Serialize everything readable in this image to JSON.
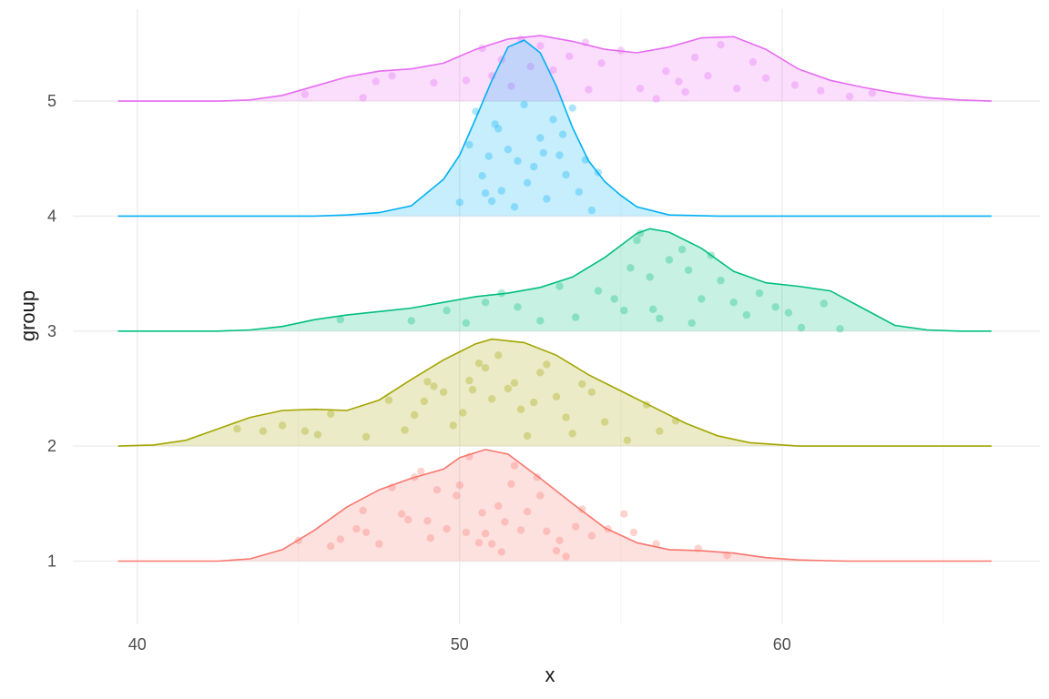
{
  "chart_data": {
    "type": "ridgeline",
    "xlabel": "x",
    "ylabel": "group",
    "xlim": [
      38,
      68
    ],
    "ylim": [
      0.45,
      5.8
    ],
    "x_ticks": [
      40,
      50,
      60
    ],
    "y_ticks": [
      1,
      2,
      3,
      4,
      5
    ],
    "grid": true,
    "legend": "none",
    "density_scale_groups": 1.0,
    "series": [
      {
        "group": 1,
        "color": "#F8766D",
        "density_profile": [
          [
            39.4,
            0
          ],
          [
            42.5,
            0
          ],
          [
            43.5,
            0.02
          ],
          [
            44.5,
            0.1
          ],
          [
            45.5,
            0.27
          ],
          [
            46.5,
            0.47
          ],
          [
            47.5,
            0.62
          ],
          [
            48.5,
            0.72
          ],
          [
            49.5,
            0.8
          ],
          [
            50.0,
            0.9
          ],
          [
            50.8,
            0.97
          ],
          [
            51.5,
            0.93
          ],
          [
            52.5,
            0.72
          ],
          [
            53.5,
            0.5
          ],
          [
            54.5,
            0.29
          ],
          [
            55.5,
            0.16
          ],
          [
            56.5,
            0.1
          ],
          [
            57.5,
            0.09
          ],
          [
            58.5,
            0.07
          ],
          [
            59.5,
            0.03
          ],
          [
            60.5,
            0.01
          ],
          [
            62,
            0
          ],
          [
            66.5,
            0
          ]
        ],
        "points": [
          [
            45.0,
            1.18
          ],
          [
            46.0,
            1.13
          ],
          [
            46.3,
            1.19
          ],
          [
            46.8,
            1.28
          ],
          [
            47.1,
            1.25
          ],
          [
            47.5,
            1.15
          ],
          [
            47.9,
            1.64
          ],
          [
            48.4,
            1.36
          ],
          [
            48.6,
            1.73
          ],
          [
            48.8,
            1.78
          ],
          [
            49.0,
            1.35
          ],
          [
            49.1,
            1.2
          ],
          [
            49.6,
            1.28
          ],
          [
            49.9,
            1.57
          ],
          [
            50.2,
            1.25
          ],
          [
            50.3,
            1.91
          ],
          [
            50.6,
            1.16
          ],
          [
            50.7,
            1.42
          ],
          [
            50.8,
            1.24
          ],
          [
            51.0,
            1.15
          ],
          [
            51.2,
            1.48
          ],
          [
            51.3,
            1.08
          ],
          [
            51.4,
            1.34
          ],
          [
            51.6,
            1.67
          ],
          [
            51.9,
            1.27
          ],
          [
            52.1,
            1.43
          ],
          [
            52.4,
            1.73
          ],
          [
            52.5,
            1.57
          ],
          [
            52.7,
            1.26
          ],
          [
            53.0,
            1.09
          ],
          [
            53.1,
            1.18
          ],
          [
            53.3,
            1.04
          ],
          [
            53.6,
            1.3
          ],
          [
            54.1,
            1.22
          ],
          [
            54.6,
            1.28
          ],
          [
            55.1,
            1.41
          ],
          [
            55.4,
            1.25
          ],
          [
            56.1,
            1.15
          ],
          [
            57.4,
            1.11
          ],
          [
            58.3,
            1.05
          ],
          [
            48.2,
            1.41
          ],
          [
            47.0,
            1.44
          ],
          [
            49.3,
            1.62
          ],
          [
            51.7,
            1.83
          ],
          [
            53.8,
            1.45
          ],
          [
            50.0,
            1.66
          ]
        ]
      },
      {
        "group": 2,
        "color": "#A3A500",
        "density_profile": [
          [
            39.4,
            0
          ],
          [
            40.5,
            0.01
          ],
          [
            41.5,
            0.05
          ],
          [
            42.5,
            0.15
          ],
          [
            43.5,
            0.25
          ],
          [
            44.5,
            0.31
          ],
          [
            45.5,
            0.32
          ],
          [
            46.5,
            0.31
          ],
          [
            47.5,
            0.4
          ],
          [
            48.5,
            0.58
          ],
          [
            49.5,
            0.75
          ],
          [
            50.5,
            0.89
          ],
          [
            51.0,
            0.93
          ],
          [
            52.0,
            0.9
          ],
          [
            53.0,
            0.79
          ],
          [
            54.0,
            0.62
          ],
          [
            55.0,
            0.48
          ],
          [
            56.0,
            0.34
          ],
          [
            57.0,
            0.2
          ],
          [
            58.0,
            0.09
          ],
          [
            59.0,
            0.03
          ],
          [
            60.5,
            0
          ],
          [
            66.5,
            0
          ]
        ],
        "points": [
          [
            43.1,
            2.15
          ],
          [
            43.9,
            2.13
          ],
          [
            44.5,
            2.18
          ],
          [
            45.2,
            2.13
          ],
          [
            45.6,
            2.1
          ],
          [
            46.0,
            2.28
          ],
          [
            47.1,
            2.08
          ],
          [
            47.8,
            2.4
          ],
          [
            48.3,
            2.14
          ],
          [
            48.6,
            2.27
          ],
          [
            48.9,
            2.39
          ],
          [
            49.2,
            2.52
          ],
          [
            49.5,
            2.47
          ],
          [
            49.8,
            2.18
          ],
          [
            50.1,
            2.29
          ],
          [
            50.3,
            2.57
          ],
          [
            50.6,
            2.72
          ],
          [
            50.8,
            2.68
          ],
          [
            51.0,
            2.41
          ],
          [
            51.2,
            2.79
          ],
          [
            51.5,
            2.5
          ],
          [
            51.9,
            2.32
          ],
          [
            52.1,
            2.09
          ],
          [
            52.5,
            2.64
          ],
          [
            52.7,
            2.71
          ],
          [
            53.0,
            2.43
          ],
          [
            53.3,
            2.25
          ],
          [
            53.5,
            2.11
          ],
          [
            53.8,
            2.54
          ],
          [
            54.1,
            2.47
          ],
          [
            54.5,
            2.21
          ],
          [
            55.2,
            2.05
          ],
          [
            55.8,
            2.36
          ],
          [
            56.2,
            2.13
          ],
          [
            56.7,
            2.22
          ],
          [
            49.0,
            2.56
          ],
          [
            51.7,
            2.55
          ],
          [
            52.3,
            2.38
          ],
          [
            50.4,
            2.49
          ]
        ]
      },
      {
        "group": 3,
        "color": "#00BF7D",
        "density_profile": [
          [
            39.4,
            0
          ],
          [
            42.5,
            0
          ],
          [
            43.5,
            0.01
          ],
          [
            44.5,
            0.04
          ],
          [
            45.5,
            0.1
          ],
          [
            46.5,
            0.14
          ],
          [
            47.5,
            0.17
          ],
          [
            48.5,
            0.2
          ],
          [
            49.5,
            0.25
          ],
          [
            50.5,
            0.3
          ],
          [
            51.5,
            0.33
          ],
          [
            52.5,
            0.38
          ],
          [
            53.5,
            0.47
          ],
          [
            54.5,
            0.64
          ],
          [
            55.5,
            0.85
          ],
          [
            55.9,
            0.89
          ],
          [
            56.5,
            0.86
          ],
          [
            57.5,
            0.72
          ],
          [
            58.5,
            0.52
          ],
          [
            59.5,
            0.42
          ],
          [
            60.5,
            0.39
          ],
          [
            61.5,
            0.35
          ],
          [
            62.5,
            0.2
          ],
          [
            63.5,
            0.05
          ],
          [
            64.5,
            0.01
          ],
          [
            65.5,
            0
          ],
          [
            66.5,
            0
          ]
        ],
        "points": [
          [
            46.3,
            3.1
          ],
          [
            48.5,
            3.09
          ],
          [
            49.6,
            3.18
          ],
          [
            50.2,
            3.07
          ],
          [
            50.8,
            3.25
          ],
          [
            51.3,
            3.33
          ],
          [
            51.8,
            3.21
          ],
          [
            52.5,
            3.09
          ],
          [
            53.1,
            3.39
          ],
          [
            53.6,
            3.12
          ],
          [
            54.3,
            3.35
          ],
          [
            54.8,
            3.28
          ],
          [
            55.1,
            3.18
          ],
          [
            55.3,
            3.55
          ],
          [
            55.5,
            3.79
          ],
          [
            55.6,
            3.85
          ],
          [
            55.9,
            3.47
          ],
          [
            56.2,
            3.11
          ],
          [
            56.5,
            3.62
          ],
          [
            56.9,
            3.71
          ],
          [
            57.1,
            3.53
          ],
          [
            57.5,
            3.28
          ],
          [
            57.8,
            3.66
          ],
          [
            58.1,
            3.44
          ],
          [
            58.5,
            3.25
          ],
          [
            58.9,
            3.14
          ],
          [
            59.3,
            3.33
          ],
          [
            59.8,
            3.21
          ],
          [
            60.2,
            3.16
          ],
          [
            60.6,
            3.03
          ],
          [
            61.3,
            3.24
          ],
          [
            61.8,
            3.02
          ],
          [
            56.0,
            3.19
          ],
          [
            57.2,
            3.07
          ]
        ]
      },
      {
        "group": 4,
        "color": "#00B0F6",
        "density_profile": [
          [
            39.4,
            0
          ],
          [
            45.5,
            0
          ],
          [
            46.5,
            0.01
          ],
          [
            47.5,
            0.03
          ],
          [
            48.5,
            0.09
          ],
          [
            49.5,
            0.32
          ],
          [
            50.0,
            0.53
          ],
          [
            50.5,
            0.85
          ],
          [
            51.0,
            1.18
          ],
          [
            51.5,
            1.47
          ],
          [
            52.0,
            1.53
          ],
          [
            52.5,
            1.42
          ],
          [
            53.0,
            1.13
          ],
          [
            53.5,
            0.77
          ],
          [
            54.0,
            0.48
          ],
          [
            54.5,
            0.3
          ],
          [
            55.0,
            0.18
          ],
          [
            55.5,
            0.08
          ],
          [
            56.5,
            0.01
          ],
          [
            58,
            0
          ],
          [
            66.5,
            0
          ]
        ],
        "points": [
          [
            50.0,
            4.12
          ],
          [
            50.3,
            4.62
          ],
          [
            50.5,
            4.91
          ],
          [
            50.7,
            4.35
          ],
          [
            50.9,
            4.52
          ],
          [
            51.0,
            4.13
          ],
          [
            51.2,
            4.76
          ],
          [
            51.3,
            4.22
          ],
          [
            51.5,
            4.58
          ],
          [
            51.7,
            4.08
          ],
          [
            51.8,
            4.48
          ],
          [
            52.0,
            4.97
          ],
          [
            52.1,
            4.29
          ],
          [
            52.3,
            4.43
          ],
          [
            52.5,
            4.68
          ],
          [
            52.7,
            4.15
          ],
          [
            52.9,
            4.84
          ],
          [
            53.1,
            4.53
          ],
          [
            53.3,
            4.36
          ],
          [
            53.5,
            4.94
          ],
          [
            53.7,
            4.21
          ],
          [
            53.9,
            4.49
          ],
          [
            54.1,
            4.05
          ],
          [
            54.3,
            4.38
          ],
          [
            51.1,
            4.8
          ],
          [
            52.6,
            4.55
          ],
          [
            53.2,
            4.71
          ],
          [
            50.8,
            4.2
          ]
        ]
      },
      {
        "group": 5,
        "color": "#E76BF3",
        "density_profile": [
          [
            39.4,
            0
          ],
          [
            42.5,
            0
          ],
          [
            43.5,
            0.01
          ],
          [
            44.5,
            0.05
          ],
          [
            45.5,
            0.13
          ],
          [
            46.5,
            0.21
          ],
          [
            47.5,
            0.26
          ],
          [
            48.5,
            0.28
          ],
          [
            49.5,
            0.33
          ],
          [
            50.5,
            0.45
          ],
          [
            51.5,
            0.54
          ],
          [
            52.5,
            0.57
          ],
          [
            53.5,
            0.52
          ],
          [
            54.5,
            0.45
          ],
          [
            55.5,
            0.42
          ],
          [
            56.5,
            0.47
          ],
          [
            57.5,
            0.55
          ],
          [
            58.5,
            0.56
          ],
          [
            59.5,
            0.45
          ],
          [
            60.5,
            0.28
          ],
          [
            61.5,
            0.18
          ],
          [
            62.5,
            0.12
          ],
          [
            63.5,
            0.07
          ],
          [
            64.5,
            0.03
          ],
          [
            65.5,
            0.01
          ],
          [
            66.5,
            0
          ]
        ],
        "points": [
          [
            45.2,
            5.06
          ],
          [
            47.0,
            5.03
          ],
          [
            47.4,
            5.17
          ],
          [
            47.9,
            5.22
          ],
          [
            49.2,
            5.16
          ],
          [
            50.2,
            5.18
          ],
          [
            50.7,
            5.46
          ],
          [
            51.0,
            5.22
          ],
          [
            51.3,
            5.36
          ],
          [
            51.6,
            5.13
          ],
          [
            51.9,
            5.54
          ],
          [
            52.2,
            5.3
          ],
          [
            52.5,
            5.48
          ],
          [
            52.9,
            5.27
          ],
          [
            53.4,
            5.39
          ],
          [
            53.9,
            5.51
          ],
          [
            54.4,
            5.33
          ],
          [
            55.0,
            5.44
          ],
          [
            55.6,
            5.11
          ],
          [
            56.1,
            5.02
          ],
          [
            56.4,
            5.26
          ],
          [
            56.8,
            5.17
          ],
          [
            57.3,
            5.38
          ],
          [
            57.7,
            5.22
          ],
          [
            58.1,
            5.49
          ],
          [
            58.6,
            5.11
          ],
          [
            59.1,
            5.34
          ],
          [
            59.5,
            5.2
          ],
          [
            60.4,
            5.14
          ],
          [
            61.2,
            5.09
          ],
          [
            62.1,
            5.04
          ],
          [
            62.8,
            5.07
          ],
          [
            57.0,
            5.08
          ],
          [
            54.0,
            5.1
          ]
        ]
      }
    ]
  }
}
